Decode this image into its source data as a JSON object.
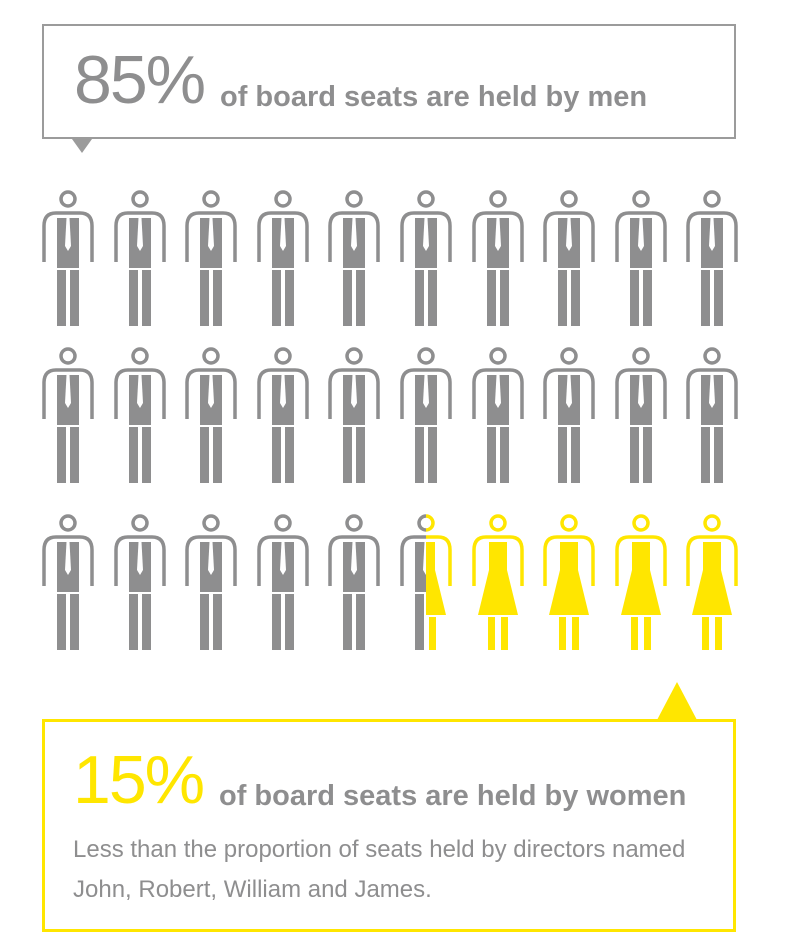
{
  "men_box": {
    "percent": "85%",
    "caption": "of board seats are held by men"
  },
  "women_box": {
    "percent": "15%",
    "caption": "of board seats are held by women",
    "note": "Less than the proportion of seats held by directors named John, Robert, William and James."
  },
  "pictogram": {
    "total_figures": 30,
    "men_share_percent": 85,
    "women_share_percent": 15,
    "colors": {
      "men": "#8e8e8f",
      "women": "#ffe600"
    }
  }
}
